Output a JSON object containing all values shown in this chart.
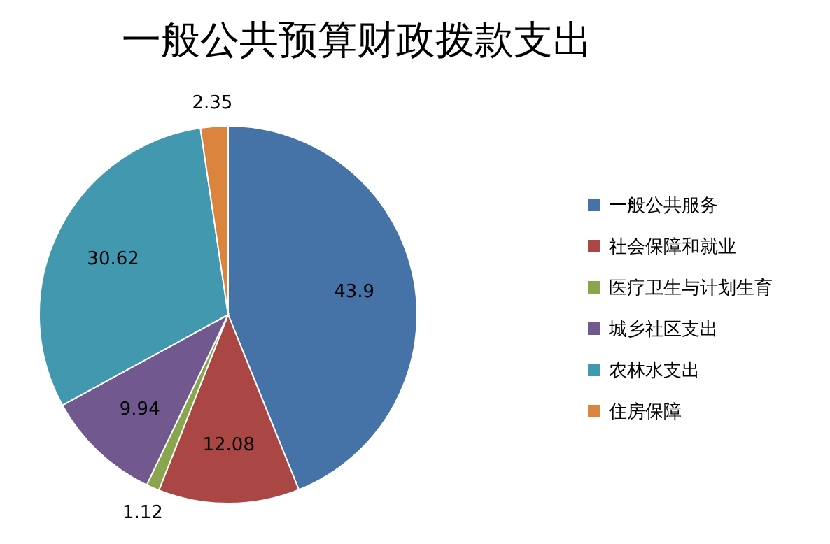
{
  "chart_data": {
    "type": "pie",
    "title": "一般公共预算财政拨款支出",
    "categories": [
      "一般公共服务",
      "社会保障和就业",
      "医疗卫生与计划生育",
      "城乡社区支出",
      "农林水支出",
      "住房保障"
    ],
    "values": [
      43.9,
      12.08,
      1.12,
      9.94,
      30.62,
      2.35
    ],
    "colors": [
      "#4572a7",
      "#aa4643",
      "#89a54e",
      "#71588f",
      "#4198af",
      "#db843d"
    ],
    "data_labels": true,
    "legend": "right"
  }
}
